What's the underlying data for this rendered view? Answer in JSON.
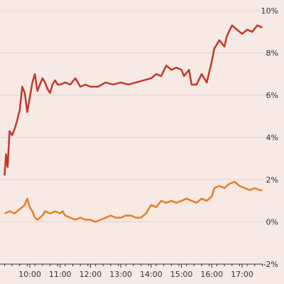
{
  "chart_data": {
    "type": "line",
    "title": "",
    "xlabel": "",
    "ylabel": "",
    "y_axis_position": "right",
    "x_ticks": [
      "10:00",
      "11:00",
      "12:00",
      "13:00",
      "14:00",
      "15:00",
      "16:00",
      "17:00"
    ],
    "y_ticks": [
      "-2%",
      "0%",
      "2%",
      "4%",
      "6%",
      "8%",
      "10%"
    ],
    "y_tick_values": [
      -2,
      0,
      2,
      4,
      6,
      8,
      10
    ],
    "xlim": [
      "09:10",
      "17:45"
    ],
    "ylim": [
      -2,
      10
    ],
    "grid": true,
    "series": [
      {
        "color": "#c0392b",
        "points": [
          [
            "09:10",
            2.2
          ],
          [
            "09:13",
            3.2
          ],
          [
            "09:16",
            2.6
          ],
          [
            "09:20",
            4.3
          ],
          [
            "09:25",
            4.1
          ],
          [
            "09:30",
            4.4
          ],
          [
            "09:35",
            4.8
          ],
          [
            "09:40",
            5.3
          ],
          [
            "09:45",
            6.4
          ],
          [
            "09:50",
            6.1
          ],
          [
            "09:55",
            5.2
          ],
          [
            "10:00",
            5.9
          ],
          [
            "10:05",
            6.6
          ],
          [
            "10:10",
            7.0
          ],
          [
            "10:15",
            6.2
          ],
          [
            "10:20",
            6.5
          ],
          [
            "10:25",
            6.8
          ],
          [
            "10:30",
            6.6
          ],
          [
            "10:35",
            6.3
          ],
          [
            "10:40",
            6.1
          ],
          [
            "10:45",
            6.5
          ],
          [
            "10:50",
            6.7
          ],
          [
            "10:55",
            6.5
          ],
          [
            "11:00",
            6.5
          ],
          [
            "11:10",
            6.6
          ],
          [
            "11:20",
            6.5
          ],
          [
            "11:30",
            6.8
          ],
          [
            "11:40",
            6.4
          ],
          [
            "11:50",
            6.5
          ],
          [
            "12:00",
            6.4
          ],
          [
            "12:15",
            6.4
          ],
          [
            "12:30",
            6.6
          ],
          [
            "12:45",
            6.5
          ],
          [
            "13:00",
            6.6
          ],
          [
            "13:15",
            6.5
          ],
          [
            "13:30",
            6.6
          ],
          [
            "13:45",
            6.7
          ],
          [
            "14:00",
            6.8
          ],
          [
            "14:10",
            7.0
          ],
          [
            "14:20",
            6.9
          ],
          [
            "14:30",
            7.4
          ],
          [
            "14:40",
            7.2
          ],
          [
            "14:50",
            7.3
          ],
          [
            "15:00",
            7.2
          ],
          [
            "15:05",
            6.9
          ],
          [
            "15:15",
            7.2
          ],
          [
            "15:20",
            6.5
          ],
          [
            "15:30",
            6.5
          ],
          [
            "15:40",
            7.0
          ],
          [
            "15:50",
            6.6
          ],
          [
            "16:00",
            7.6
          ],
          [
            "16:05",
            8.2
          ],
          [
            "16:15",
            8.6
          ],
          [
            "16:25",
            8.3
          ],
          [
            "16:30",
            8.8
          ],
          [
            "16:40",
            9.3
          ],
          [
            "16:50",
            9.1
          ],
          [
            "17:00",
            8.9
          ],
          [
            "17:10",
            9.1
          ],
          [
            "17:20",
            9.0
          ],
          [
            "17:30",
            9.3
          ],
          [
            "17:40",
            9.2
          ]
        ]
      },
      {
        "color": "#e67e22",
        "points": [
          [
            "09:10",
            0.4
          ],
          [
            "09:20",
            0.5
          ],
          [
            "09:30",
            0.4
          ],
          [
            "09:40",
            0.6
          ],
          [
            "09:50",
            0.8
          ],
          [
            "09:55",
            1.1
          ],
          [
            "10:00",
            0.7
          ],
          [
            "10:05",
            0.5
          ],
          [
            "10:10",
            0.2
          ],
          [
            "10:15",
            0.1
          ],
          [
            "10:25",
            0.3
          ],
          [
            "10:30",
            0.5
          ],
          [
            "10:40",
            0.4
          ],
          [
            "10:50",
            0.5
          ],
          [
            "11:00",
            0.4
          ],
          [
            "11:05",
            0.5
          ],
          [
            "11:10",
            0.3
          ],
          [
            "11:20",
            0.2
          ],
          [
            "11:30",
            0.1
          ],
          [
            "11:40",
            0.2
          ],
          [
            "11:50",
            0.1
          ],
          [
            "12:00",
            0.1
          ],
          [
            "12:10",
            0.0
          ],
          [
            "12:20",
            0.1
          ],
          [
            "12:30",
            0.2
          ],
          [
            "12:40",
            0.3
          ],
          [
            "12:50",
            0.2
          ],
          [
            "13:00",
            0.2
          ],
          [
            "13:10",
            0.3
          ],
          [
            "13:20",
            0.3
          ],
          [
            "13:30",
            0.2
          ],
          [
            "13:40",
            0.2
          ],
          [
            "13:50",
            0.4
          ],
          [
            "14:00",
            0.8
          ],
          [
            "14:10",
            0.7
          ],
          [
            "14:20",
            1.0
          ],
          [
            "14:30",
            0.9
          ],
          [
            "14:40",
            1.0
          ],
          [
            "14:50",
            0.9
          ],
          [
            "15:00",
            1.0
          ],
          [
            "15:10",
            1.1
          ],
          [
            "15:20",
            1.0
          ],
          [
            "15:30",
            0.9
          ],
          [
            "15:40",
            1.1
          ],
          [
            "15:50",
            1.0
          ],
          [
            "16:00",
            1.2
          ],
          [
            "16:05",
            1.6
          ],
          [
            "16:15",
            1.7
          ],
          [
            "16:25",
            1.6
          ],
          [
            "16:35",
            1.8
          ],
          [
            "16:45",
            1.9
          ],
          [
            "16:55",
            1.7
          ],
          [
            "17:05",
            1.6
          ],
          [
            "17:15",
            1.5
          ],
          [
            "17:25",
            1.6
          ],
          [
            "17:35",
            1.5
          ],
          [
            "17:40",
            1.5
          ]
        ]
      }
    ]
  }
}
